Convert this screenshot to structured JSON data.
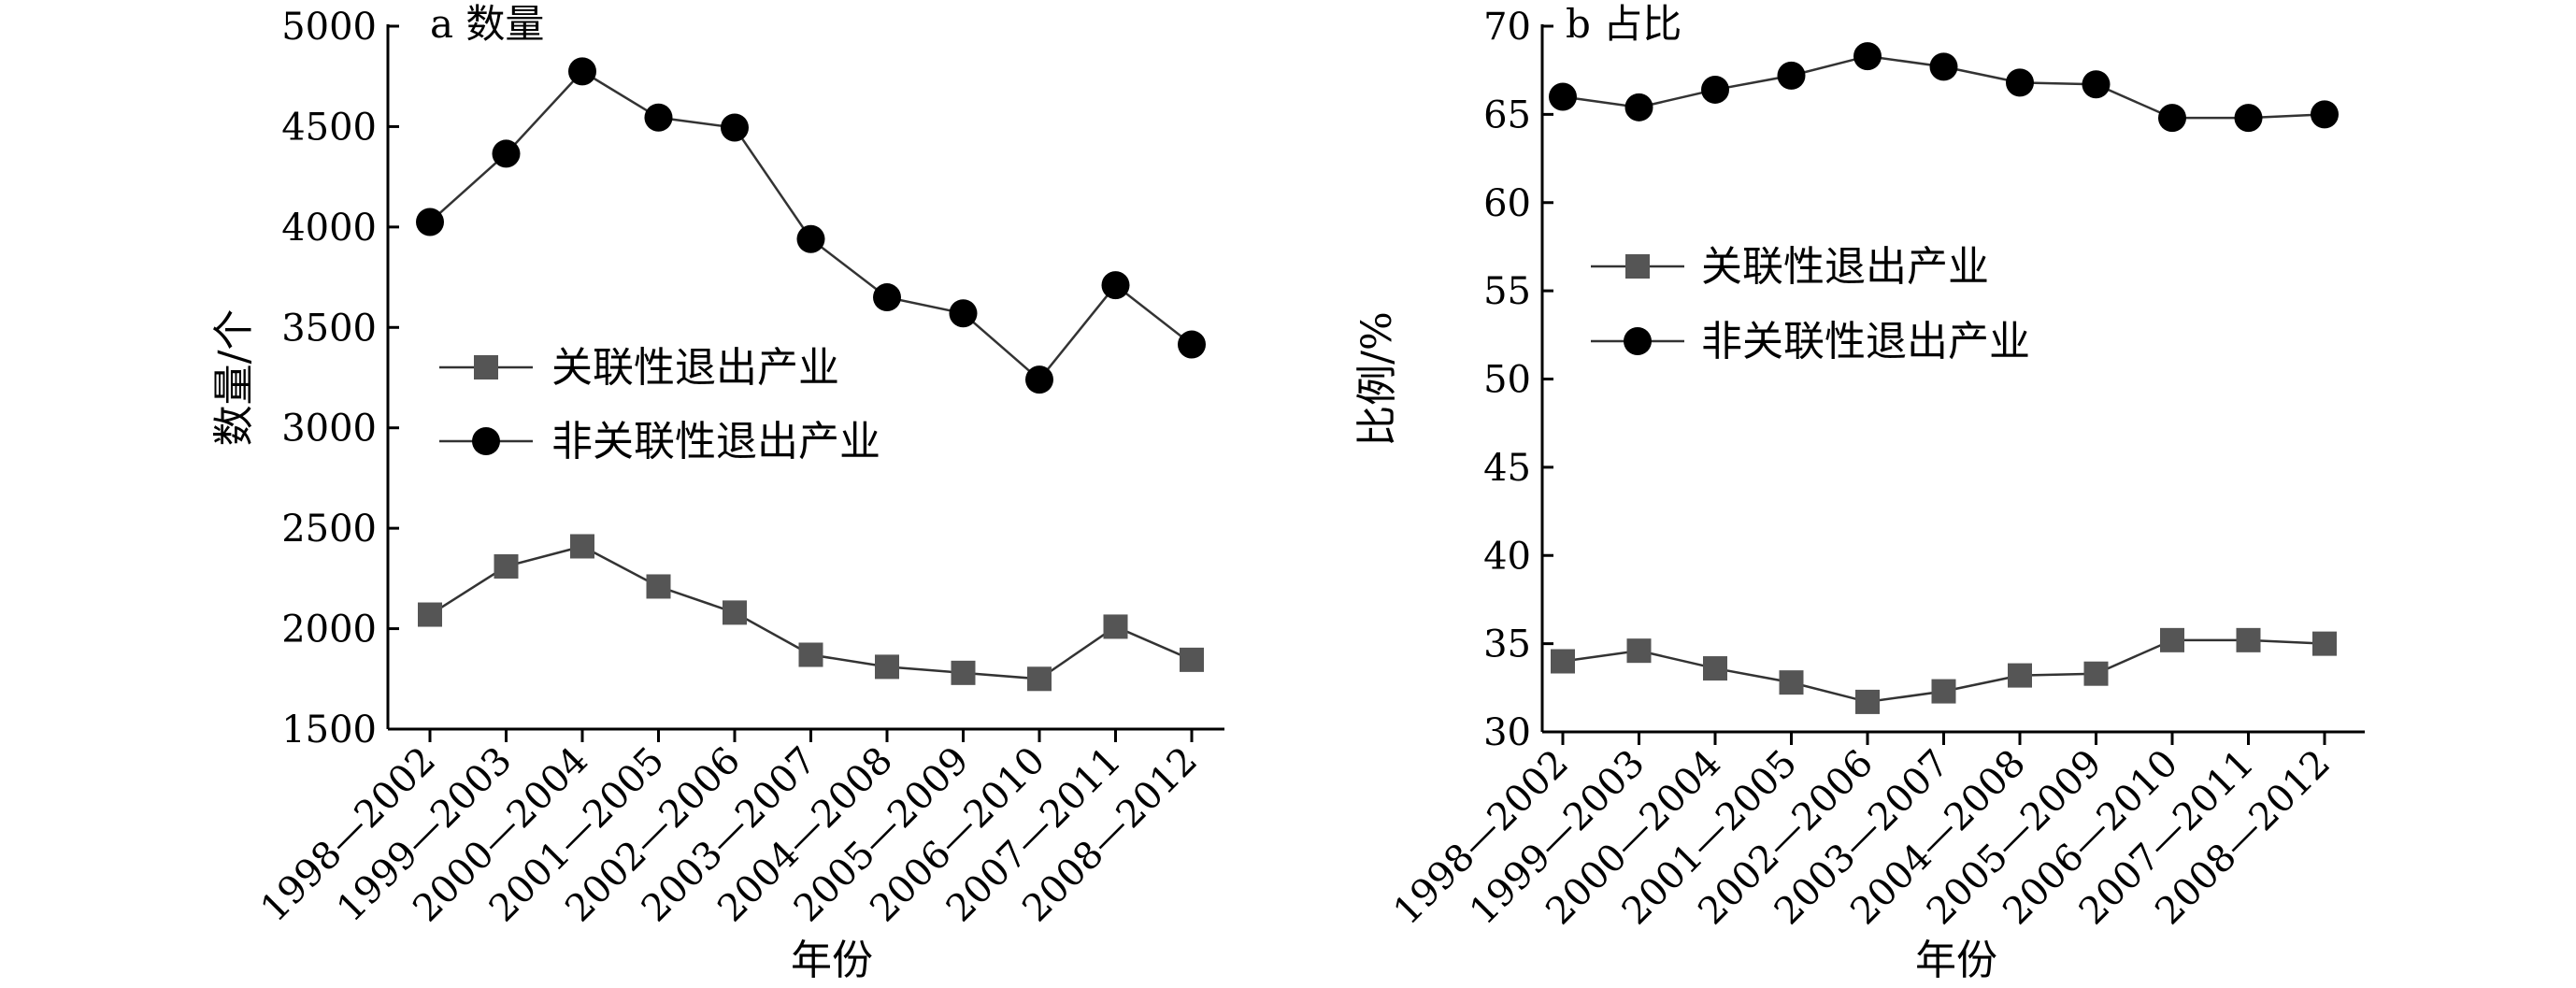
{
  "chart_data": [
    {
      "type": "line",
      "title": "a 数量",
      "xlabel": "年份",
      "ylabel": "数量/个",
      "ylim": [
        1500,
        5000
      ],
      "yticks": [
        1500,
        2000,
        2500,
        3000,
        3500,
        4000,
        4500,
        5000
      ],
      "categories": [
        "1998—2002",
        "1999—2003",
        "2000—2004",
        "2001—2005",
        "2002—2006",
        "2003—2007",
        "2004—2008",
        "2005—2009",
        "2006—2010",
        "2007—2011",
        "2008—2012"
      ],
      "legend_position": "middle-left",
      "grid": false,
      "series": [
        {
          "name": "关联性退出产业",
          "marker": "square",
          "color": "#555555",
          "values": [
            2070,
            2310,
            2410,
            2210,
            2080,
            1870,
            1810,
            1780,
            1750,
            2010,
            1845
          ]
        },
        {
          "name": "非关联性退出产业",
          "marker": "circle",
          "color": "#000000",
          "values": [
            4025,
            4365,
            4775,
            4545,
            4495,
            3940,
            3650,
            3570,
            3240,
            3710,
            3415
          ]
        }
      ]
    },
    {
      "type": "line",
      "title": "b 占比",
      "xlabel": "年份",
      "ylabel": "比例/%",
      "ylim": [
        30,
        70
      ],
      "yticks": [
        30,
        35,
        40,
        45,
        50,
        55,
        60,
        65,
        70
      ],
      "categories": [
        "1998—2002",
        "1999—2003",
        "2000—2004",
        "2001—2005",
        "2002—2006",
        "2003—2007",
        "2004—2008",
        "2005—2009",
        "2006—2010",
        "2007—2011",
        "2008—2012"
      ],
      "legend_position": "middle-left",
      "grid": false,
      "series": [
        {
          "name": "关联性退出产业",
          "marker": "square",
          "color": "#555555",
          "values": [
            34.0,
            34.6,
            33.6,
            32.8,
            31.7,
            32.3,
            33.2,
            33.3,
            35.2,
            35.2,
            35.0
          ]
        },
        {
          "name": "非关联性退出产业",
          "marker": "circle",
          "color": "#000000",
          "values": [
            66.0,
            65.4,
            66.4,
            67.2,
            68.3,
            67.7,
            66.8,
            66.7,
            64.8,
            64.8,
            65.0
          ]
        }
      ]
    }
  ]
}
